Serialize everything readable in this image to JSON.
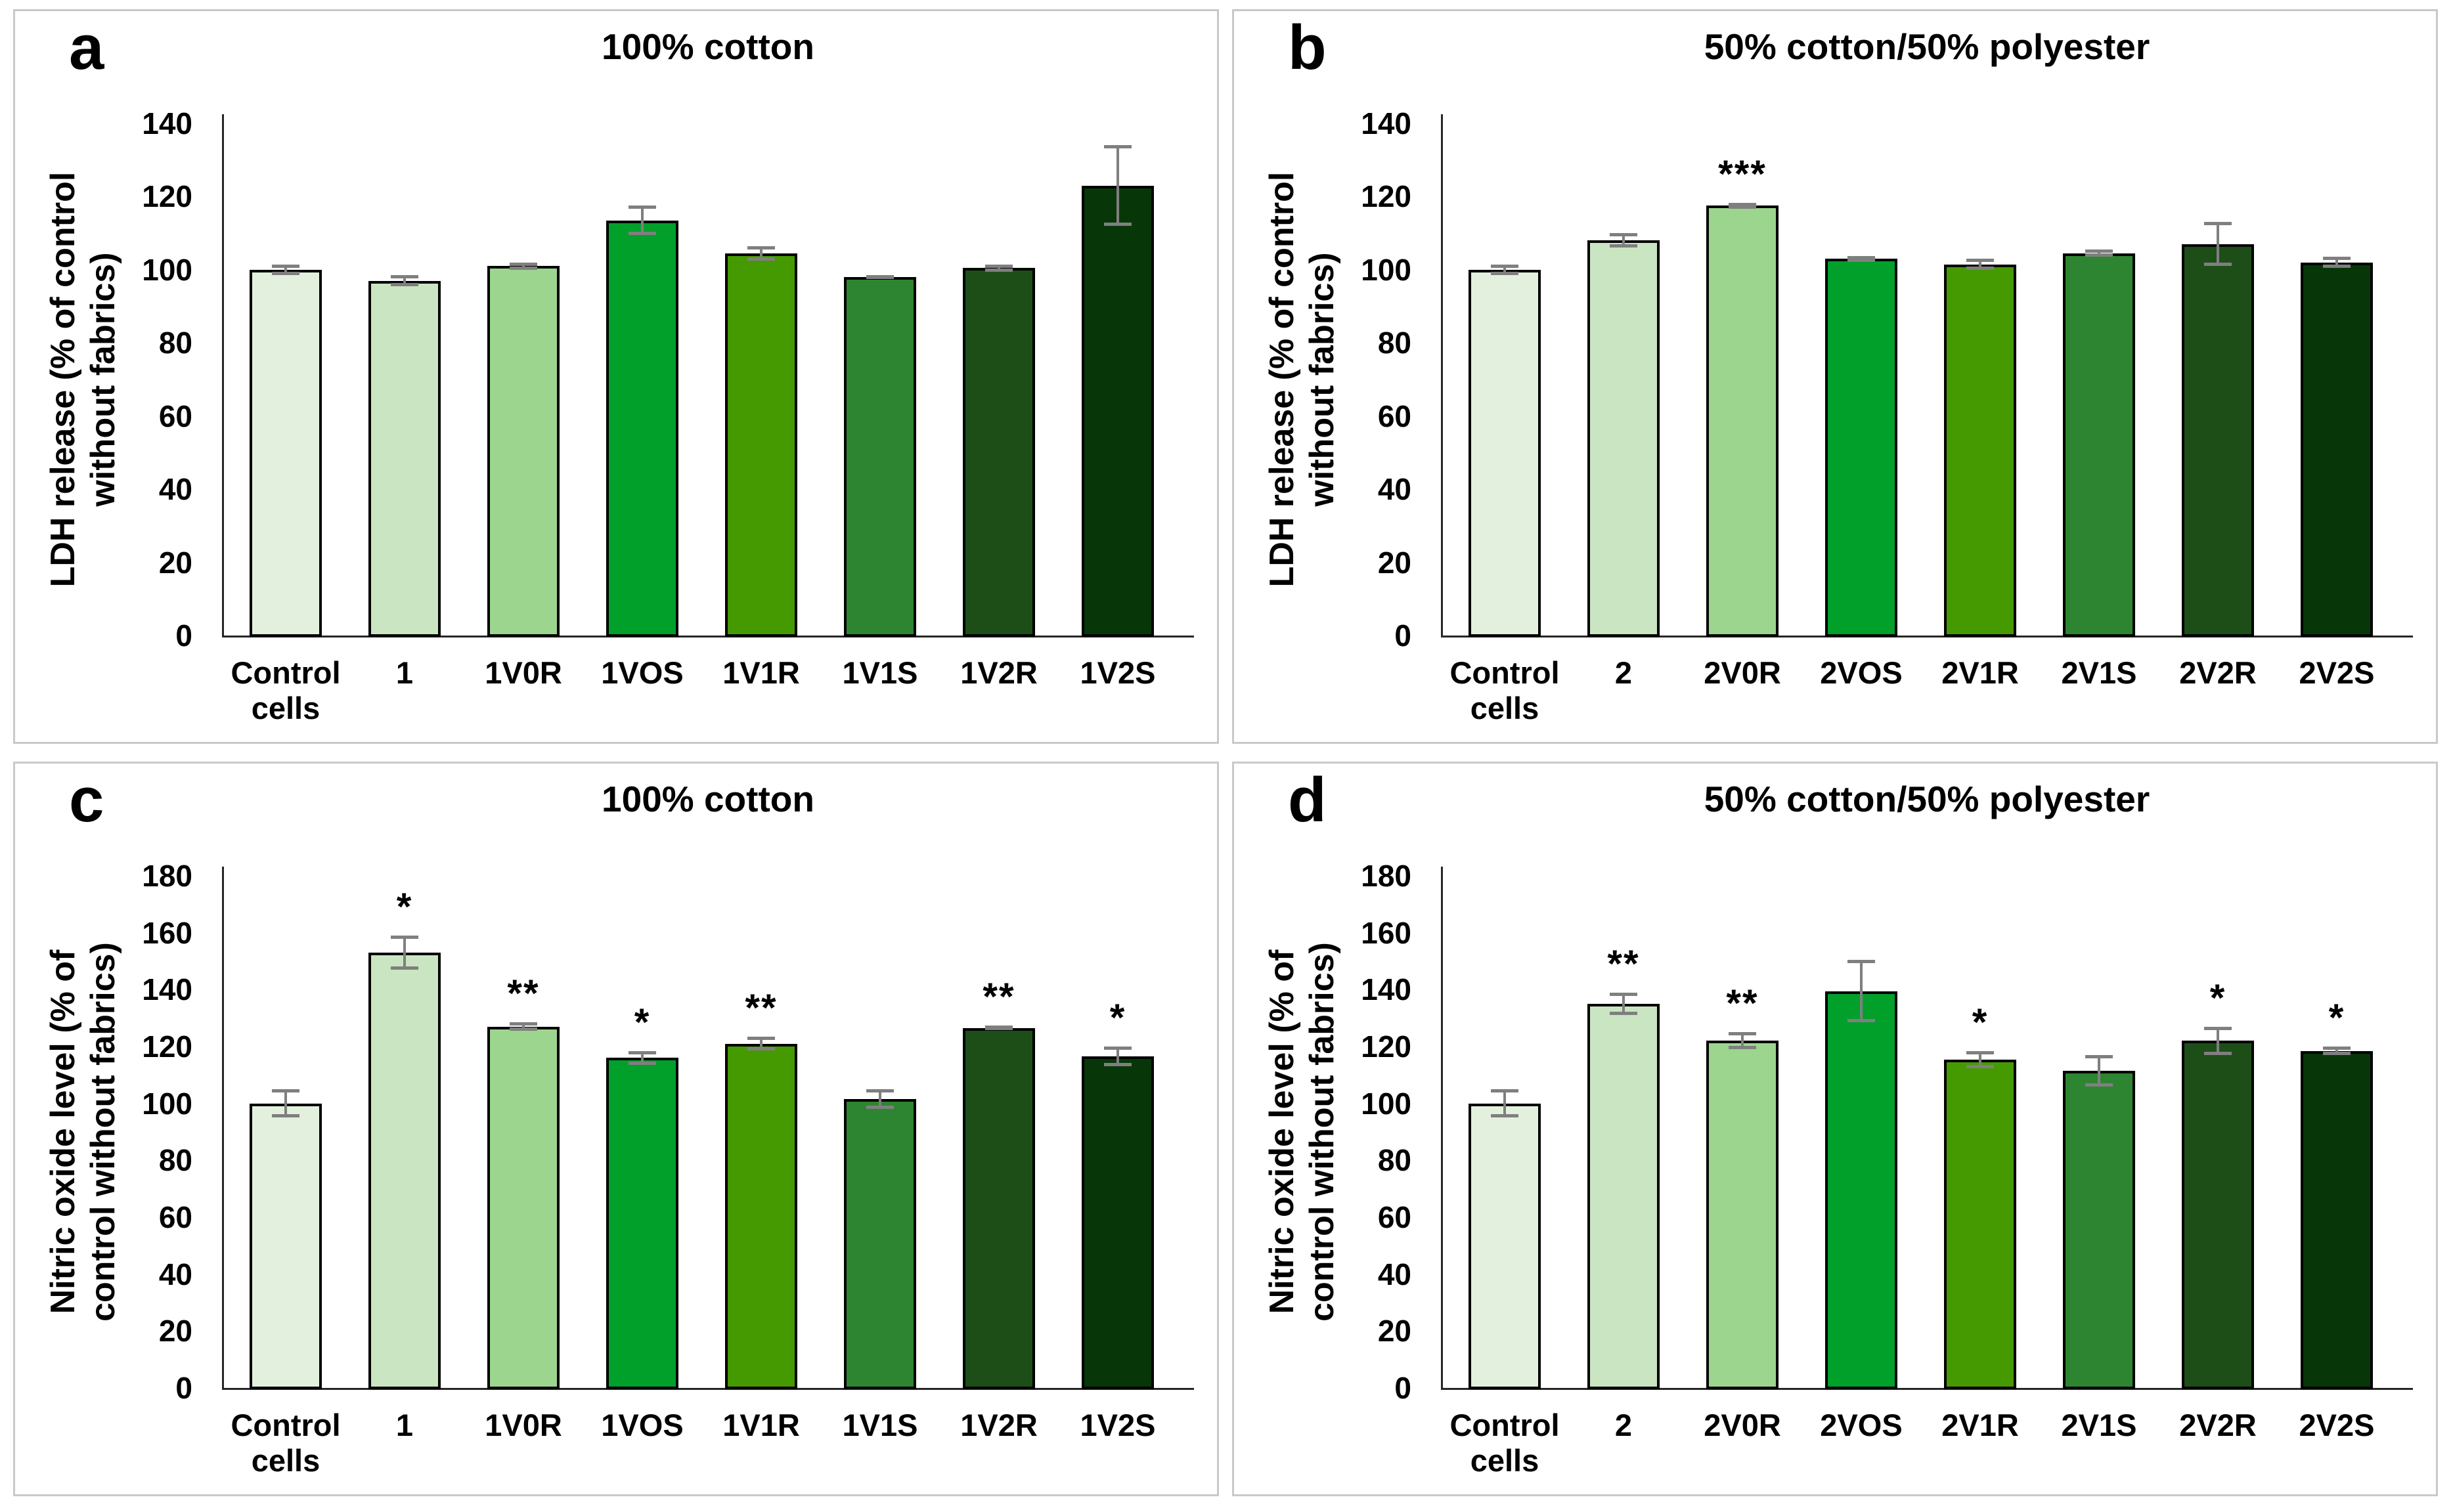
{
  "style": {
    "bar_colors": [
      "#e3f0de",
      "#c9e5c1",
      "#9cd58e",
      "#00a02b",
      "#459a01",
      "#2e8531",
      "#1d4e18",
      "#073708"
    ],
    "error_bar_color": "#7f7f7f",
    "axis_color": "#262626",
    "bar_border_color": "#000000",
    "panel_border_color": "#c9c9c9",
    "text_color": "#000000"
  },
  "chart_data": [
    {
      "panel_label": "a",
      "type": "bar",
      "title": "100% cotton",
      "ylabel": "LDH release (% of control without fabrics)",
      "ylabel_lines": [
        "LDH release (% of control",
        "without fabrics)"
      ],
      "xlabel": "",
      "ylim": [
        0,
        140
      ],
      "ytick_step": 20,
      "grid": "off",
      "categories": [
        "Control cells",
        "1",
        "1V0R",
        "1VOS",
        "1V1R",
        "1V1S",
        "1V2R",
        "1V2S"
      ],
      "values": [
        100,
        97,
        101,
        113.5,
        104.5,
        98,
        100.5,
        123
      ],
      "errors": [
        1.5,
        1.5,
        1,
        4,
        2,
        0.5,
        1,
        11
      ],
      "significance": [
        "",
        "",
        "",
        "",
        "",
        "",
        "",
        ""
      ]
    },
    {
      "panel_label": "b",
      "type": "bar",
      "title": "50% cotton/50% polyester",
      "ylabel": "LDH release (% of control without fabrics)",
      "ylabel_lines": [
        "LDH release (% of control",
        "without fabrics)"
      ],
      "xlabel": "",
      "ylim": [
        0,
        140
      ],
      "ytick_step": 20,
      "grid": "off",
      "categories": [
        "Control cells",
        "2",
        "2V0R",
        "2VOS",
        "2V1R",
        "2V1S",
        "2V2R",
        "2V2S"
      ],
      "values": [
        100,
        108,
        117.5,
        103,
        101.5,
        104.5,
        107,
        102
      ],
      "errors": [
        1.5,
        2,
        0.8,
        0.8,
        1.5,
        1,
        6,
        1.5
      ],
      "significance": [
        "",
        "",
        "***",
        "",
        "",
        "",
        "",
        ""
      ]
    },
    {
      "panel_label": "c",
      "type": "bar",
      "title": "100% cotton",
      "ylabel": "Nitric oxide level (% of control without fabrics)",
      "ylabel_lines": [
        "Nitric oxide level (% of",
        "control without fabrics)"
      ],
      "xlabel": "",
      "ylim": [
        0,
        180
      ],
      "ytick_step": 20,
      "grid": "off",
      "categories": [
        "Control cells",
        "1",
        "1V0R",
        "1VOS",
        "1V1R",
        "1V1S",
        "1V2R",
        "1V2S"
      ],
      "values": [
        100,
        153,
        127,
        116,
        121,
        101.5,
        126.5,
        116.5
      ],
      "errors": [
        5,
        6,
        1.5,
        2.5,
        2.5,
        3.5,
        0.8,
        3.5
      ],
      "significance": [
        "",
        "*",
        "**",
        "*",
        "**",
        "",
        "**",
        "*"
      ]
    },
    {
      "panel_label": "d",
      "type": "bar",
      "title": "50% cotton/50% polyester",
      "ylabel": "Nitric oxide level (% of control without fabrics)",
      "ylabel_lines": [
        "Nitric oxide level (% of",
        "control without fabrics)"
      ],
      "xlabel": "",
      "ylim": [
        0,
        180
      ],
      "ytick_step": 20,
      "grid": "off",
      "categories": [
        "Control cells",
        "2",
        "2V0R",
        "2VOS",
        "2V1R",
        "2V1S",
        "2V2R",
        "2V2S"
      ],
      "values": [
        100,
        135,
        122,
        139.5,
        115.5,
        111.5,
        122,
        118.5
      ],
      "errors": [
        5,
        4,
        3,
        11,
        3,
        5.5,
        5,
        1.5
      ],
      "significance": [
        "",
        "**",
        "**",
        "",
        "*",
        "",
        "*",
        "*"
      ]
    }
  ]
}
